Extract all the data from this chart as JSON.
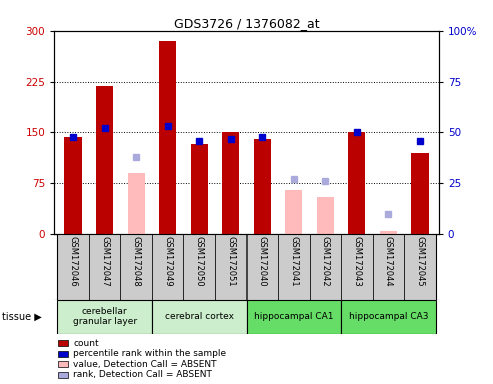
{
  "title": "GDS3726 / 1376082_at",
  "samples": [
    "GSM172046",
    "GSM172047",
    "GSM172048",
    "GSM172049",
    "GSM172050",
    "GSM172051",
    "GSM172040",
    "GSM172041",
    "GSM172042",
    "GSM172043",
    "GSM172044",
    "GSM172045"
  ],
  "count_values": [
    143,
    218,
    null,
    285,
    133,
    150,
    140,
    null,
    null,
    150,
    null,
    120
  ],
  "count_absent_values": [
    null,
    null,
    90,
    null,
    null,
    null,
    null,
    65,
    55,
    null,
    5,
    null
  ],
  "rank_values": [
    48,
    52,
    null,
    53,
    46,
    47,
    48,
    null,
    null,
    50,
    null,
    46
  ],
  "rank_absent_values": [
    null,
    null,
    38,
    null,
    null,
    null,
    null,
    27,
    26,
    null,
    10,
    null
  ],
  "tissues": [
    {
      "label": "cerebellar\ngranular layer",
      "start": 0,
      "end": 3,
      "color": "#cceecc"
    },
    {
      "label": "cerebral cortex",
      "start": 3,
      "end": 6,
      "color": "#cceecc"
    },
    {
      "label": "hippocampal CA1",
      "start": 6,
      "end": 9,
      "color": "#66dd66"
    },
    {
      "label": "hippocampal CA3",
      "start": 9,
      "end": 12,
      "color": "#66dd66"
    }
  ],
  "ylim_left": [
    0,
    300
  ],
  "ylim_right": [
    0,
    100
  ],
  "yticks_left": [
    0,
    75,
    150,
    225,
    300
  ],
  "yticks_right": [
    0,
    25,
    50,
    75,
    100
  ],
  "bar_width": 0.55,
  "count_color": "#bb0000",
  "count_absent_color": "#ffbbbb",
  "rank_color": "#0000cc",
  "rank_absent_color": "#aaaadd",
  "background_color": "#ffffff",
  "plot_bg_color": "#ffffff",
  "label_color_left": "#cc0000",
  "label_color_right": "#0000cc",
  "tick_label_bg": "#cccccc"
}
